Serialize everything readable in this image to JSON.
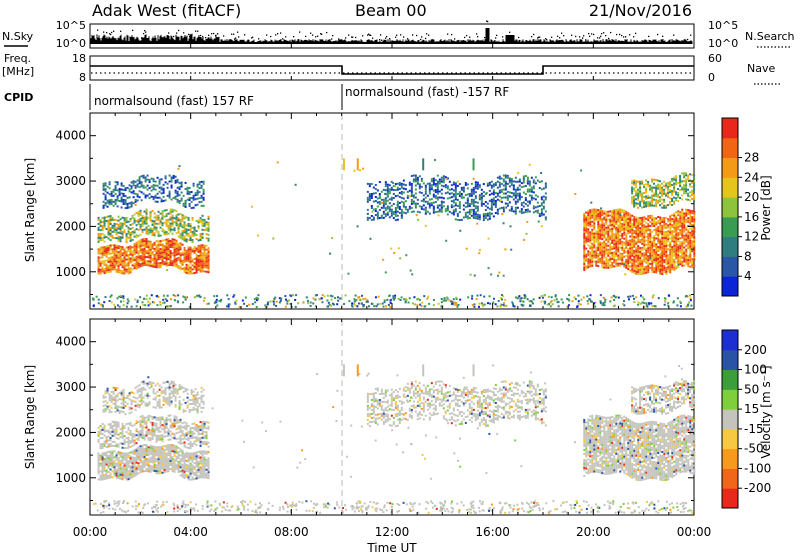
{
  "header": {
    "station": "Adak West (fitACF)",
    "beam": "Beam 00",
    "date": "21/Nov/2016"
  },
  "left_labels": {
    "nsky": "N.Sky",
    "freq": "Freq.",
    "freq_unit": "[MHz]",
    "cpid": "CPID"
  },
  "right_labels": {
    "nsearch": "N.Search",
    "nave": "Nave"
  },
  "noise_panel": {
    "left_ticks": [
      "10^5",
      "10^0"
    ],
    "right_ticks": [
      "10^5",
      "10^0"
    ]
  },
  "freq_panel": {
    "left_ticks": [
      "18",
      "8"
    ],
    "right_ticks": [
      "60",
      "0"
    ]
  },
  "cpid_panel": {
    "segments": [
      {
        "label": "normalsound (fast) 157 RF",
        "start_h": 0,
        "end_h": 10
      },
      {
        "label": "normalsound (fast) -157 RF",
        "start_h": 10,
        "end_h": 24
      }
    ]
  },
  "colors": {
    "power": [
      "#0b24d6",
      "#2a56a8",
      "#2f7d80",
      "#3a9b52",
      "#8ec43d",
      "#e6c41e",
      "#f39a16",
      "#f06614",
      "#e8281b"
    ],
    "velocity": [
      "#e8281b",
      "#f0661a",
      "#f59a1c",
      "#f7c943",
      "#c4c4bd",
      "#7fcf3d",
      "#3c9e3a",
      "#2a53a6",
      "#1e2fd1"
    ]
  },
  "chart_data": [
    {
      "type": "heatmap",
      "title": "",
      "xlabel": "Time UT",
      "ylabel": "Slant Range [km]",
      "x_ticks": [
        "00:00",
        "04:00",
        "08:00",
        "12:00",
        "16:00",
        "20:00",
        "00:00"
      ],
      "y_ticks": [
        "1000",
        "2000",
        "3000",
        "4000"
      ],
      "xlim_hours": [
        0,
        24
      ],
      "ylim_km": [
        180,
        4500
      ],
      "colorbar": {
        "label": "Power [dB]",
        "ticks": [
          "4",
          "8",
          "12",
          "16",
          "20",
          "24",
          "28"
        ]
      },
      "echo_regions_hours_km": [
        {
          "t0": 0.3,
          "t1": 4.7,
          "r0": 1050,
          "r1": 1650,
          "level": "high"
        },
        {
          "t0": 0.3,
          "t1": 4.7,
          "r0": 1750,
          "r1": 2300,
          "level": "mid"
        },
        {
          "t0": 0.5,
          "t1": 4.5,
          "r0": 2500,
          "r1": 3050,
          "level": "low"
        },
        {
          "t0": 11.0,
          "t1": 18.1,
          "r0": 2250,
          "r1": 3050,
          "level": "low"
        },
        {
          "t0": 19.6,
          "t1": 24.0,
          "r0": 1050,
          "r1": 2300,
          "level": "high"
        },
        {
          "t0": 21.5,
          "t1": 24.0,
          "r0": 2500,
          "r1": 3100,
          "level": "mid"
        }
      ]
    },
    {
      "type": "heatmap",
      "title": "",
      "xlabel": "Time UT",
      "ylabel": "Slant Range [km]",
      "x_ticks": [
        "00:00",
        "04:00",
        "08:00",
        "12:00",
        "16:00",
        "20:00",
        "00:00"
      ],
      "y_ticks": [
        "1000",
        "2000",
        "3000",
        "4000"
      ],
      "xlim_hours": [
        0,
        24
      ],
      "ylim_km": [
        180,
        4500
      ],
      "colorbar": {
        "label": "Velocity [m s⁻¹]",
        "ticks": [
          "200",
          "100",
          "50",
          "15",
          "-15",
          "-50",
          "-100",
          "-200"
        ]
      }
    }
  ]
}
